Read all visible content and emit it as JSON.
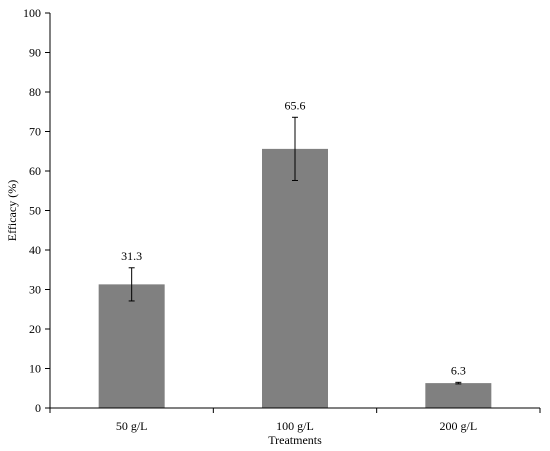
{
  "chart_data": {
    "type": "bar",
    "categories": [
      "50 g/L",
      "100 g/L",
      "200 g/L"
    ],
    "values": [
      31.3,
      65.6,
      6.3
    ],
    "error": [
      4.2,
      8.0,
      0.2
    ],
    "data_labels": [
      "31.3",
      "65.6",
      "6.3"
    ],
    "title": "",
    "xlabel": "Treatments",
    "ylabel": "Efficacy (%)",
    "ylim": [
      0,
      100
    ],
    "yticks": [
      0,
      10,
      20,
      30,
      40,
      50,
      60,
      70,
      80,
      90,
      100
    ],
    "grid": false,
    "legend": "none",
    "bar_color": "#808080",
    "axis_color": "#000000"
  }
}
